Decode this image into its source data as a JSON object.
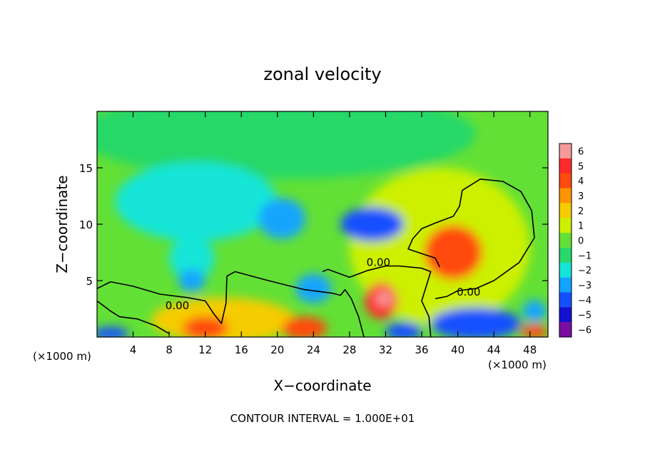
{
  "chart_data": {
    "type": "heatmap",
    "title": "zonal velocity",
    "xlabel": "X−coordinate",
    "ylabel": "Z−coordinate",
    "x_units_left": "(×1000 m)",
    "x_units_right": "(×1000 m)",
    "footer": "CONTOUR INTERVAL = 1.000E+01",
    "xlim": [
      0,
      50
    ],
    "ylim": [
      0,
      20
    ],
    "x_ticks": [
      4,
      8,
      12,
      16,
      20,
      24,
      28,
      32,
      36,
      40,
      44,
      48
    ],
    "x_tick_labels": [
      "4",
      "8",
      "12",
      "16",
      "20",
      "24",
      "28",
      "32",
      "36",
      "40",
      "44",
      "48"
    ],
    "y_ticks": [
      5,
      10,
      15
    ],
    "y_tick_labels": [
      "5",
      "10",
      "15"
    ],
    "colorbar": {
      "levels": [
        6,
        5,
        4,
        3,
        2,
        1,
        0,
        -1,
        -2,
        -3,
        -4,
        -5,
        -6
      ],
      "labels": [
        "6",
        "5",
        "4",
        "3",
        "2",
        "1",
        "0",
        "−1",
        "−2",
        "−3",
        "−4",
        "−5",
        "−6"
      ],
      "colors": [
        "#f59a9a",
        "#ff2a2a",
        "#ff4a10",
        "#ff9500",
        "#f5cc00",
        "#ccf000",
        "#63e035",
        "#28d868",
        "#12e5d8",
        "#12a4ff",
        "#1450ff",
        "#1410d2",
        "#7a0ea0"
      ]
    },
    "contour_labels": [
      {
        "text": "0.00",
        "x": 8.9,
        "y": 2.8
      },
      {
        "text": "0.00",
        "x": 31.2,
        "y": 6.6
      },
      {
        "text": "0.00",
        "x": 41.2,
        "y": 4.0
      }
    ],
    "features": [
      {
        "name": "background",
        "x": 0,
        "y": 0,
        "rx": 0,
        "ry": 0,
        "value": 0.2
      },
      {
        "name": "upper-ambient",
        "x": 20,
        "y": 18,
        "rx": 22,
        "ry": 4,
        "value": -1.3
      },
      {
        "name": "cyan-band-left",
        "x": 11,
        "y": 12,
        "rx": 9,
        "ry": 3.5,
        "value": -1.8
      },
      {
        "name": "upper-right-yellow-green",
        "x": 38,
        "y": 8,
        "rx": 10,
        "ry": 7,
        "value": 0.8
      },
      {
        "name": "jet-core",
        "x": 39.5,
        "y": 7.5,
        "rx": 3.2,
        "ry": 2.4,
        "value": 3.9
      },
      {
        "name": "jet-core-inner",
        "x": 39.5,
        "y": 7.4,
        "rx": 2.2,
        "ry": 1.5,
        "value": 4.4
      },
      {
        "name": "blue-core-a",
        "x": 20.5,
        "y": 10.5,
        "rx": 2.6,
        "ry": 1.8,
        "value": -3.0
      },
      {
        "name": "blue-core-b",
        "x": 30.5,
        "y": 10.0,
        "rx": 3.5,
        "ry": 1.5,
        "value": -3.6
      },
      {
        "name": "cyan-patch-left",
        "x": 10.5,
        "y": 7,
        "rx": 2.5,
        "ry": 2,
        "value": -1.9
      },
      {
        "name": "blue-patch-left",
        "x": 10.5,
        "y": 5,
        "rx": 1.5,
        "ry": 1,
        "value": -3.0
      },
      {
        "name": "blue-patch-center",
        "x": 24,
        "y": 4.3,
        "rx": 2.0,
        "ry": 1.3,
        "value": -3.2
      },
      {
        "name": "lower-yellow-band",
        "x": 14,
        "y": 1.5,
        "rx": 8,
        "ry": 2,
        "value": 1.8
      },
      {
        "name": "lower-red-left",
        "x": 12,
        "y": 0.8,
        "rx": 2.5,
        "ry": 1,
        "value": 3.8
      },
      {
        "name": "lower-red-mid",
        "x": 23,
        "y": 0.8,
        "rx": 2.5,
        "ry": 1,
        "value": 4.1
      },
      {
        "name": "red-plume",
        "x": 31.5,
        "y": 3.2,
        "rx": 1.8,
        "ry": 1.6,
        "value": 4.6
      },
      {
        "name": "red-plume-top",
        "x": 31.8,
        "y": 3.4,
        "rx": 0.9,
        "ry": 0.7,
        "value": 6.0
      },
      {
        "name": "surface-blue-left",
        "x": 1.5,
        "y": 0.3,
        "rx": 2,
        "ry": 0.6,
        "value": -4
      },
      {
        "name": "surface-blue-mid",
        "x": 34,
        "y": 0.5,
        "rx": 2,
        "ry": 0.8,
        "value": -4.5
      },
      {
        "name": "surface-blue-right",
        "x": 42,
        "y": 1.2,
        "rx": 5,
        "ry": 1.4,
        "value": -4.2
      },
      {
        "name": "surface-blue-far-right",
        "x": 48.5,
        "y": 2.3,
        "rx": 1.3,
        "ry": 1,
        "value": -3.4
      },
      {
        "name": "surface-red-right",
        "x": 48.5,
        "y": 0.5,
        "rx": 1.5,
        "ry": 0.6,
        "value": 3.5
      }
    ]
  }
}
